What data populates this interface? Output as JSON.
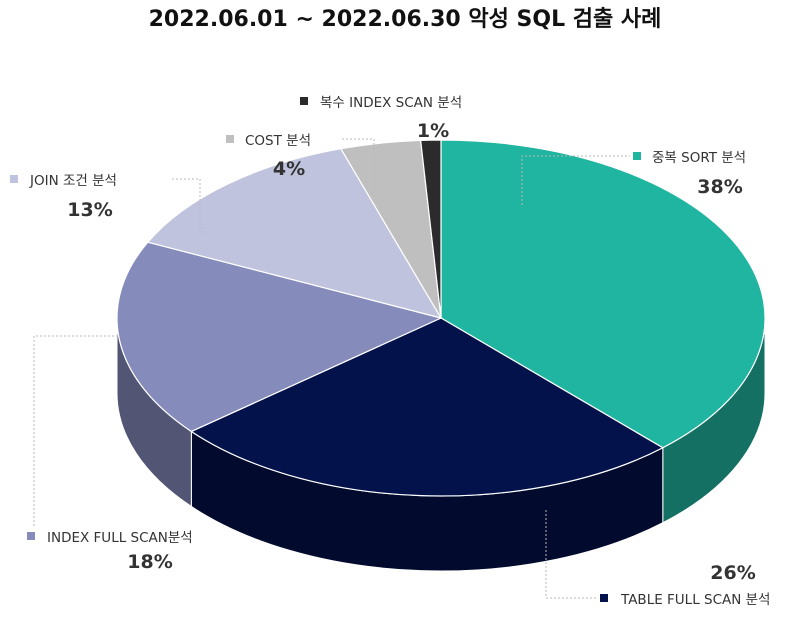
{
  "chart_data": {
    "type": "pie",
    "title": "2022.06.01 ~ 2022.06.30 악성 SQL 검출 사례",
    "legend": "labels-around",
    "slices": [
      {
        "label": "중복 SORT 분석",
        "value": 38,
        "value_label": "38%",
        "color": "#1fb5a0"
      },
      {
        "label": "TABLE FULL SCAN 분석",
        "value": 26,
        "value_label": "26%",
        "color": "#03124a"
      },
      {
        "label": "INDEX FULL SCAN분석",
        "value": 18,
        "value_label": "18%",
        "color": "#858bbb"
      },
      {
        "label": "JOIN 조건 분석",
        "value": 13,
        "value_label": "13%",
        "color": "#c0c3de"
      },
      {
        "label": "COST 분석",
        "value": 4,
        "value_label": "4%",
        "color": "#bfbfbf"
      },
      {
        "label": "복수 INDEX SCAN 분석",
        "value": 1,
        "value_label": "1%",
        "color": "#2b2b2b"
      }
    ]
  }
}
